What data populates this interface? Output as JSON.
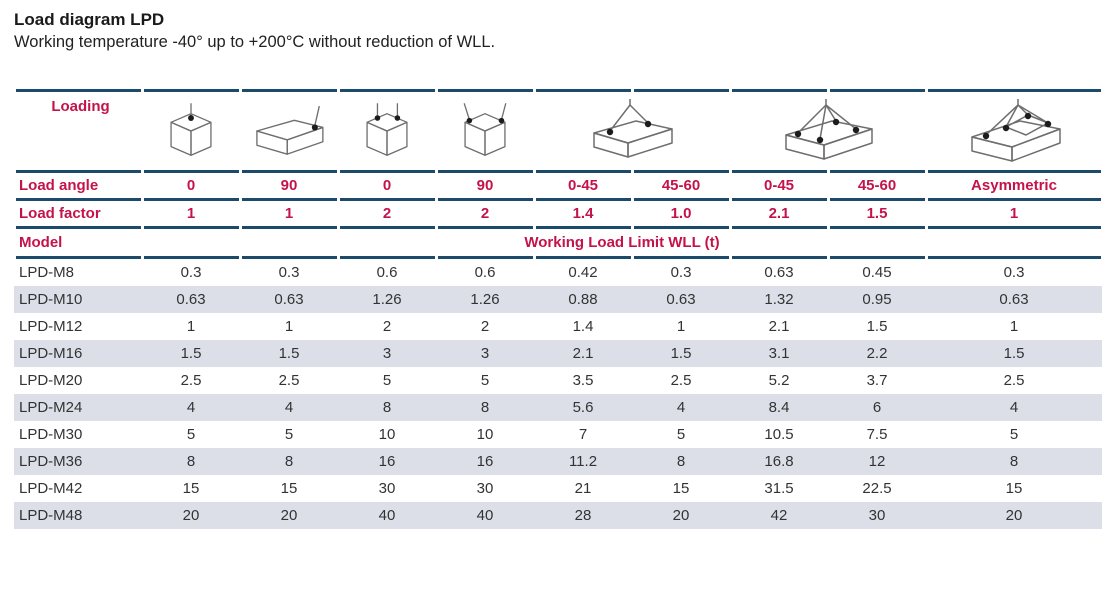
{
  "page": {
    "title": "Load diagram LPD",
    "subtitle": "Working temperature -40° up to +200°C without reduction of WLL."
  },
  "colors": {
    "accent_red": "#c4134b",
    "rule_navy": "#1b4a6b",
    "zebra_gray": "#dcdfe8",
    "body_text": "#333333"
  },
  "table": {
    "loading_label": "Loading",
    "icons": [
      {
        "name": "single-leg-vertical-lift-icon",
        "span": 1
      },
      {
        "name": "single-leg-side-pull-90-icon",
        "span": 1
      },
      {
        "name": "two-leg-vertical-lift-icon",
        "span": 1
      },
      {
        "name": "two-leg-side-pull-90-icon",
        "span": 1
      },
      {
        "name": "two-leg-angled-sling-icon",
        "span": 2
      },
      {
        "name": "four-leg-angled-sling-icon",
        "span": 2
      },
      {
        "name": "asymmetric-four-leg-sling-icon",
        "span": 1
      }
    ],
    "load_angle": {
      "label": "Load angle",
      "values": [
        "0",
        "90",
        "0",
        "90",
        "0-45",
        "45-60",
        "0-45",
        "45-60",
        "Asymmetric"
      ]
    },
    "load_factor": {
      "label": "Load factor",
      "values": [
        "1",
        "1",
        "2",
        "2",
        "1.4",
        "1.0",
        "2.1",
        "1.5",
        "1"
      ]
    },
    "model_label": "Model",
    "wll_header": "Working Load Limit WLL (t)",
    "rows": [
      {
        "model": "LPD-M8",
        "values": [
          "0.3",
          "0.3",
          "0.6",
          "0.6",
          "0.42",
          "0.3",
          "0.63",
          "0.45",
          "0.3"
        ]
      },
      {
        "model": "LPD-M10",
        "values": [
          "0.63",
          "0.63",
          "1.26",
          "1.26",
          "0.88",
          "0.63",
          "1.32",
          "0.95",
          "0.63"
        ]
      },
      {
        "model": "LPD-M12",
        "values": [
          "1",
          "1",
          "2",
          "2",
          "1.4",
          "1",
          "2.1",
          "1.5",
          "1"
        ]
      },
      {
        "model": "LPD-M16",
        "values": [
          "1.5",
          "1.5",
          "3",
          "3",
          "2.1",
          "1.5",
          "3.1",
          "2.2",
          "1.5"
        ]
      },
      {
        "model": "LPD-M20",
        "values": [
          "2.5",
          "2.5",
          "5",
          "5",
          "3.5",
          "2.5",
          "5.2",
          "3.7",
          "2.5"
        ]
      },
      {
        "model": "LPD-M24",
        "values": [
          "4",
          "4",
          "8",
          "8",
          "5.6",
          "4",
          "8.4",
          "6",
          "4"
        ]
      },
      {
        "model": "LPD-M30",
        "values": [
          "5",
          "5",
          "10",
          "10",
          "7",
          "5",
          "10.5",
          "7.5",
          "5"
        ]
      },
      {
        "model": "LPD-M36",
        "values": [
          "8",
          "8",
          "16",
          "16",
          "11.2",
          "8",
          "16.8",
          "12",
          "8"
        ]
      },
      {
        "model": "LPD-M42",
        "values": [
          "15",
          "15",
          "30",
          "30",
          "21",
          "15",
          "31.5",
          "22.5",
          "15"
        ]
      },
      {
        "model": "LPD-M48",
        "values": [
          "20",
          "20",
          "40",
          "40",
          "28",
          "20",
          "42",
          "30",
          "20"
        ]
      }
    ]
  }
}
